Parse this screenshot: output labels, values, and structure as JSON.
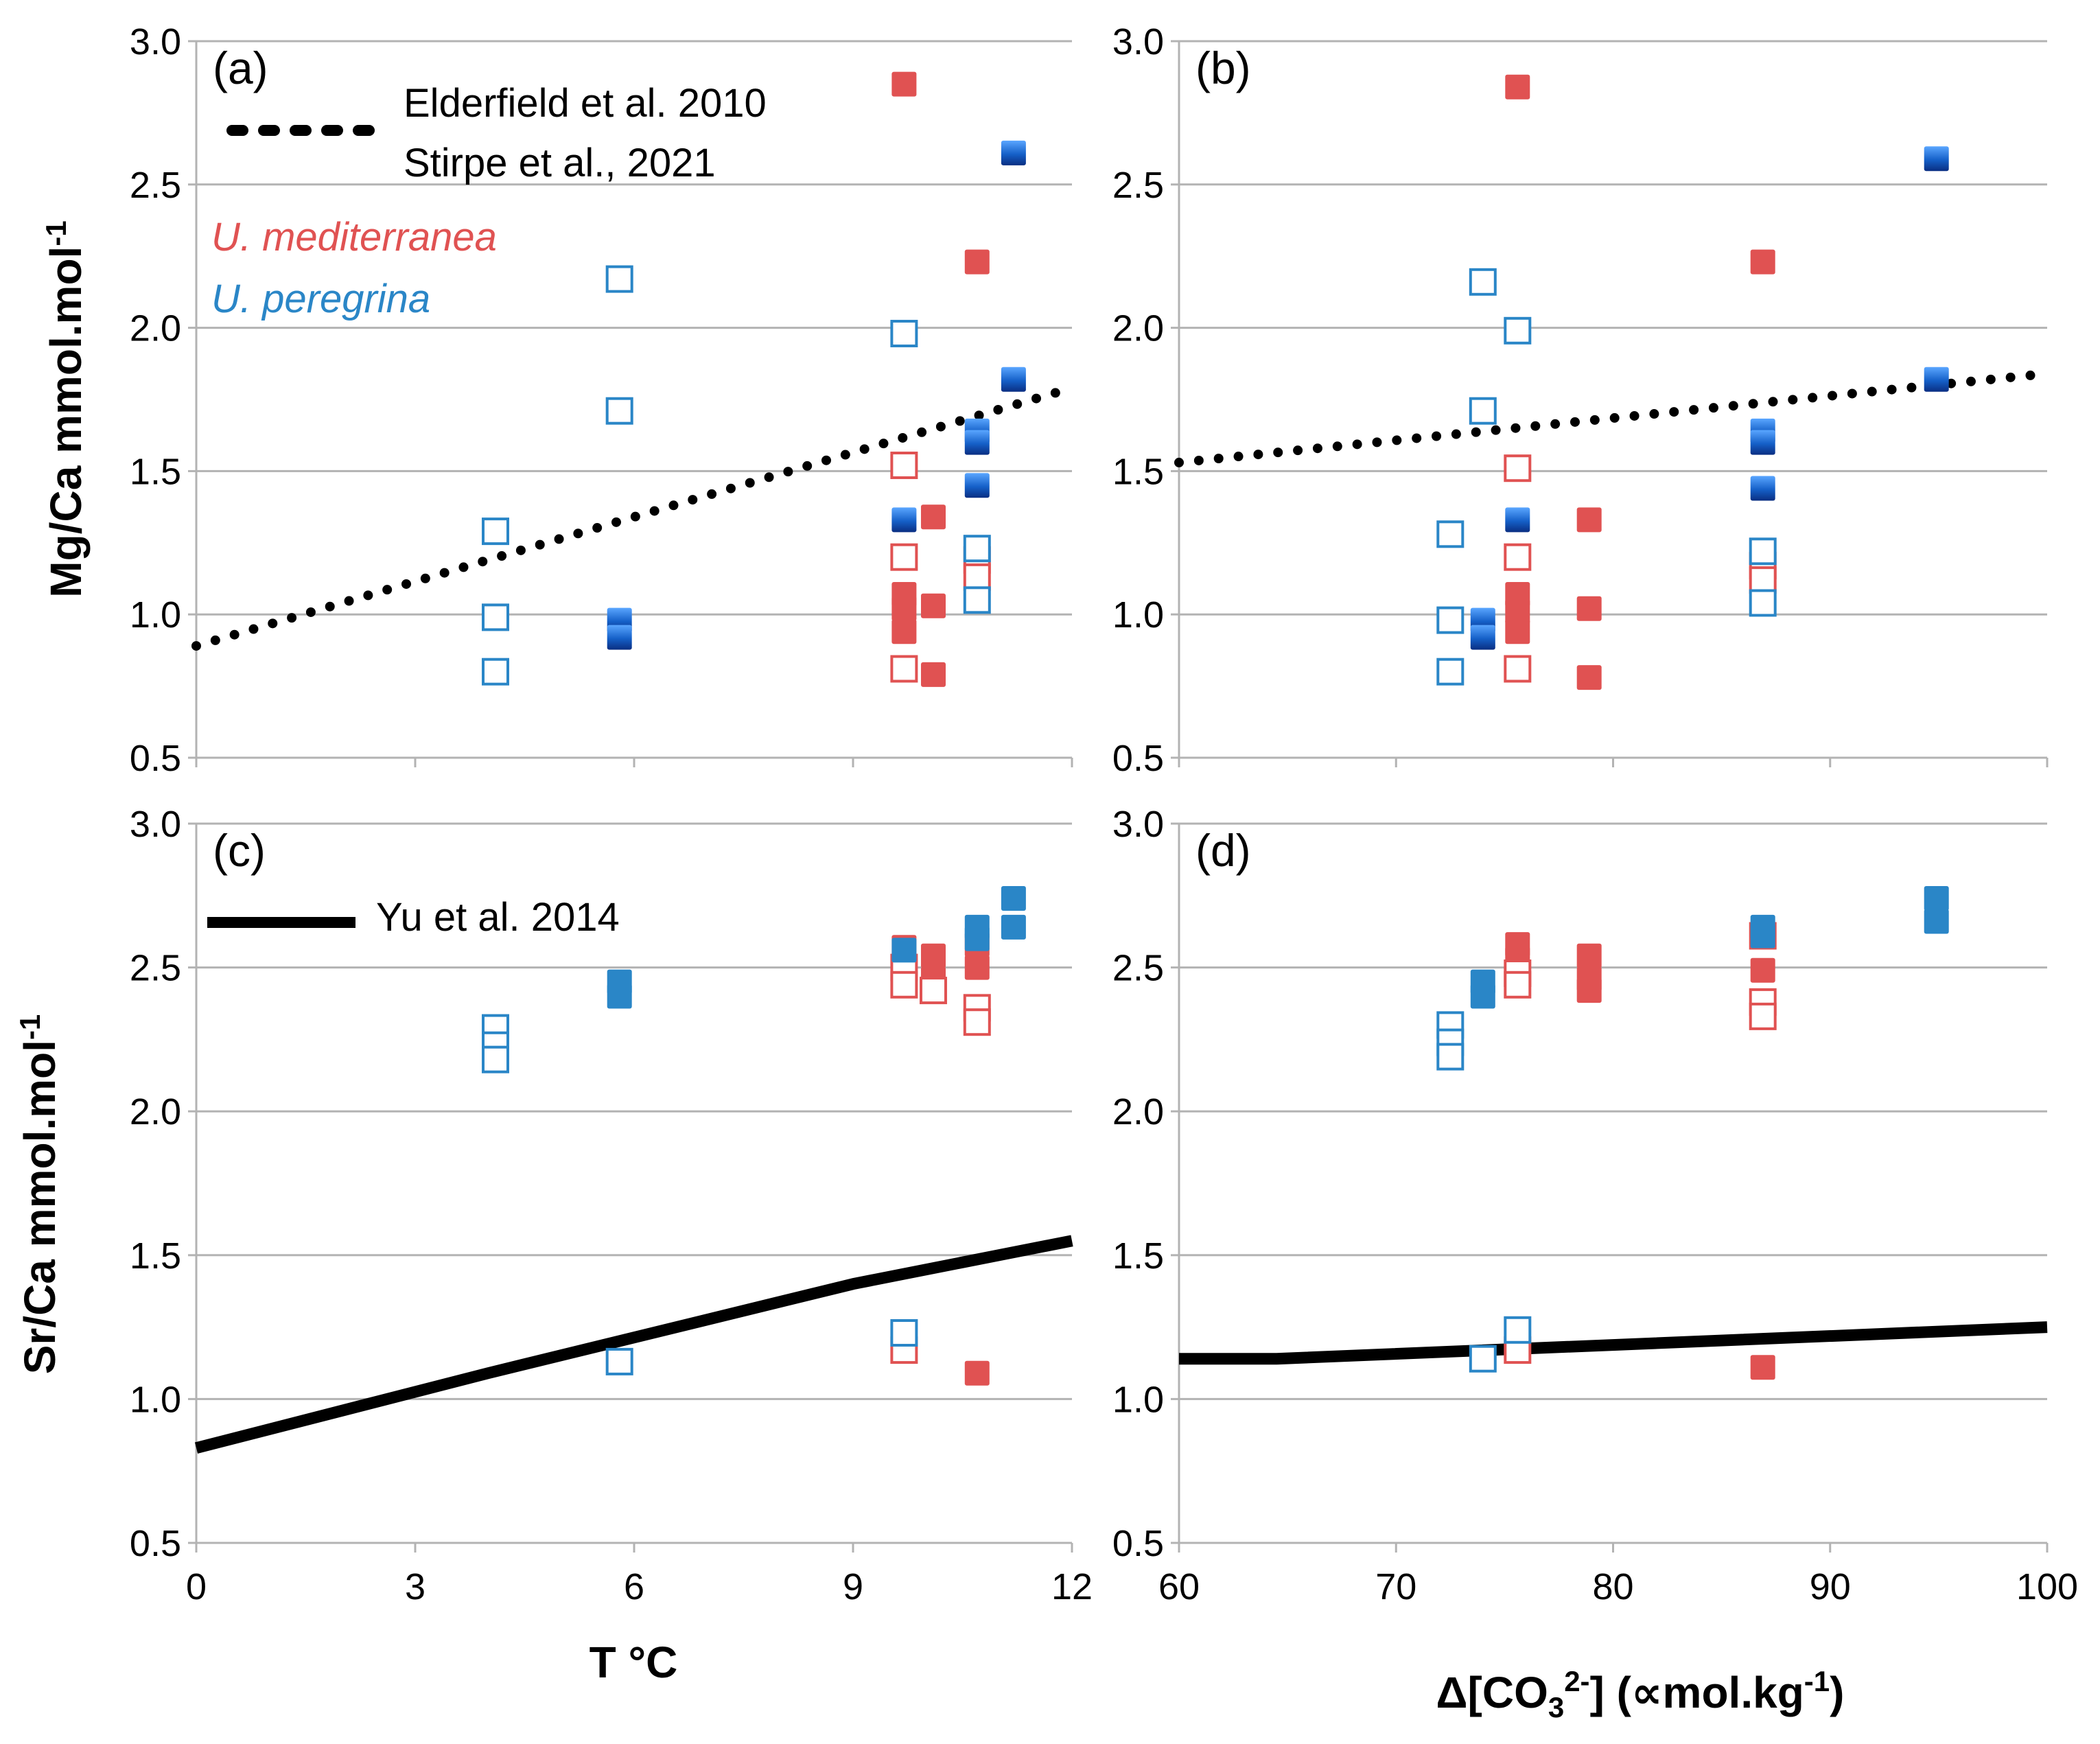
{
  "colors": {
    "red": "#e05252",
    "blue_filled": "#1560c8",
    "blue_open": "#2a86c7",
    "blue_plain": "#2a86c7",
    "grid": "#b3b3b3",
    "line": "#000000"
  },
  "labels": {
    "mg_axis": "Mg/Ca mmol.mol",
    "sr_axis": "Sr/Ca mmol.mol",
    "exp_minus1": "-1",
    "x_temp": "T °C",
    "x_co3_delta": "Δ[CO",
    "x_co3_sub": "3",
    "x_co3_sup": "2-",
    "x_co3_mid": "] (∝mol.kg",
    "x_co3_sup2": "-1",
    "x_co3_end": ")"
  },
  "legend": {
    "elderfield": "Elderfield et al. 2010",
    "stirpe": "Stirpe et al., 2021",
    "mediterranea": "U. mediterranea",
    "peregrina": "U. peregrina",
    "yu": "Yu et al. 2014"
  },
  "chart_data": [
    {
      "id": "a",
      "panel_label": "(a)",
      "type": "scatter",
      "xlabel": "T °C",
      "ylabel": "Mg/Ca mmol.mol-1",
      "xlim": [
        0,
        12
      ],
      "ylim": [
        0.5,
        3.0
      ],
      "xticks": [
        0,
        3,
        6,
        9,
        12
      ],
      "yticks": [
        0.5,
        1.0,
        1.5,
        2.0,
        2.5,
        3.0
      ],
      "show_x_tick_labels": false,
      "line": {
        "name": "Elderfield et al. 2010",
        "style": "dotted",
        "points": [
          [
            0,
            0.89
          ],
          [
            12,
            1.79
          ]
        ]
      },
      "series": [
        {
          "name": "U. mediterranea (Stirpe et al., 2021)",
          "style": "red_filled",
          "points": [
            [
              9.7,
              2.85
            ],
            [
              10.7,
              2.23
            ],
            [
              10.1,
              1.34
            ],
            [
              9.7,
              1.07
            ],
            [
              9.7,
              1.02
            ],
            [
              9.7,
              0.94
            ],
            [
              10.1,
              1.03
            ],
            [
              10.1,
              0.79
            ]
          ]
        },
        {
          "name": "U. mediterranea (open)",
          "style": "red_open",
          "points": [
            [
              9.7,
              1.52
            ],
            [
              9.7,
              1.2
            ],
            [
              9.7,
              0.81
            ],
            [
              10.7,
              1.19
            ],
            [
              10.7,
              1.13
            ]
          ]
        },
        {
          "name": "U. peregrina (Stirpe et al., 2021)",
          "style": "blue_filled",
          "points": [
            [
              11.2,
              2.61
            ],
            [
              11.2,
              1.82
            ],
            [
              10.7,
              1.64
            ],
            [
              10.7,
              1.6
            ],
            [
              10.7,
              1.45
            ],
            [
              9.7,
              1.33
            ],
            [
              5.8,
              0.98
            ],
            [
              5.8,
              0.92
            ]
          ]
        },
        {
          "name": "U. peregrina (open)",
          "style": "blue_open",
          "points": [
            [
              5.8,
              2.17
            ],
            [
              5.8,
              1.71
            ],
            [
              9.7,
              1.98
            ],
            [
              4.1,
              1.29
            ],
            [
              4.1,
              0.99
            ],
            [
              4.1,
              0.8
            ],
            [
              10.7,
              1.23
            ],
            [
              10.7,
              1.05
            ]
          ]
        }
      ]
    },
    {
      "id": "b",
      "panel_label": "(b)",
      "type": "scatter",
      "xlabel": "Δ[CO3 2-] (∝mol.kg-1)",
      "ylabel": "",
      "xlim": [
        60,
        100
      ],
      "ylim": [
        0.5,
        3.0
      ],
      "xticks": [
        60,
        70,
        80,
        90,
        100
      ],
      "yticks": [
        0.5,
        1.0,
        1.5,
        2.0,
        2.5,
        3.0
      ],
      "show_x_tick_labels": false,
      "line": {
        "name": "Elderfield et al. 2010",
        "style": "dotted",
        "points": [
          [
            60,
            1.53
          ],
          [
            100,
            1.84
          ]
        ]
      },
      "series": [
        {
          "name": "U. mediterranea",
          "style": "red_filled",
          "points": [
            [
              75.6,
              2.84
            ],
            [
              86.9,
              2.23
            ],
            [
              78.9,
              1.33
            ],
            [
              75.6,
              1.07
            ],
            [
              75.6,
              1.01
            ],
            [
              75.6,
              0.94
            ],
            [
              78.9,
              1.02
            ],
            [
              78.9,
              0.78
            ]
          ]
        },
        {
          "name": "U. mediterranea (open)",
          "style": "red_open",
          "points": [
            [
              75.6,
              1.51
            ],
            [
              75.6,
              1.2
            ],
            [
              75.6,
              0.81
            ],
            [
              86.9,
              1.17
            ],
            [
              86.9,
              1.12
            ]
          ]
        },
        {
          "name": "U. peregrina",
          "style": "blue_filled",
          "points": [
            [
              94.9,
              2.59
            ],
            [
              94.9,
              1.82
            ],
            [
              86.9,
              1.64
            ],
            [
              86.9,
              1.6
            ],
            [
              86.9,
              1.44
            ],
            [
              75.6,
              1.33
            ],
            [
              74.0,
              0.98
            ],
            [
              74.0,
              0.92
            ]
          ]
        },
        {
          "name": "U. peregrina (open)",
          "style": "blue_open",
          "points": [
            [
              74.0,
              2.16
            ],
            [
              74.0,
              1.71
            ],
            [
              75.6,
              1.99
            ],
            [
              72.5,
              1.28
            ],
            [
              72.5,
              0.98
            ],
            [
              72.5,
              0.8
            ],
            [
              86.9,
              1.22
            ],
            [
              86.9,
              1.04
            ]
          ]
        }
      ]
    },
    {
      "id": "c",
      "panel_label": "(c)",
      "type": "scatter",
      "xlabel": "T °C",
      "ylabel": "Sr/Ca mmol.mol-1",
      "xlim": [
        0,
        12
      ],
      "ylim": [
        0.5,
        3.0
      ],
      "xticks": [
        0,
        3,
        6,
        9,
        12
      ],
      "yticks": [
        0.5,
        1.0,
        1.5,
        2.0,
        2.5,
        3.0
      ],
      "show_x_tick_labels": true,
      "line": {
        "name": "Yu et al. 2014",
        "style": "solid",
        "points": [
          [
            0,
            0.83
          ],
          [
            4,
            1.09
          ],
          [
            9,
            1.4
          ],
          [
            12,
            1.55
          ]
        ]
      },
      "series": [
        {
          "name": "U. mediterranea",
          "style": "red_filled",
          "points": [
            [
              9.7,
              2.57
            ],
            [
              10.1,
              2.54
            ],
            [
              10.1,
              2.46
            ],
            [
              10.7,
              2.58
            ],
            [
              10.7,
              2.5
            ],
            [
              9.7,
              1.2
            ],
            [
              10.7,
              1.09
            ]
          ]
        },
        {
          "name": "U. mediterranea (open)",
          "style": "red_open",
          "points": [
            [
              9.7,
              2.5
            ],
            [
              9.7,
              2.44
            ],
            [
              10.1,
              2.42
            ],
            [
              10.7,
              2.36
            ],
            [
              10.7,
              2.31
            ],
            [
              9.7,
              1.17
            ]
          ]
        },
        {
          "name": "U. peregrina",
          "style": "blue_plain",
          "points": [
            [
              5.8,
              2.45
            ],
            [
              5.8,
              2.4
            ],
            [
              9.7,
              2.56
            ],
            [
              10.7,
              2.64
            ],
            [
              10.7,
              2.6
            ],
            [
              11.2,
              2.74
            ],
            [
              11.2,
              2.64
            ]
          ]
        },
        {
          "name": "U. peregrina (open)",
          "style": "blue_open",
          "points": [
            [
              4.1,
              2.29
            ],
            [
              4.1,
              2.23
            ],
            [
              4.1,
              2.18
            ],
            [
              5.8,
              1.13
            ],
            [
              9.7,
              1.23
            ]
          ]
        }
      ]
    },
    {
      "id": "d",
      "panel_label": "(d)",
      "type": "scatter",
      "xlabel": "Δ[CO3 2-] (∝mol.kg-1)",
      "ylabel": "",
      "xlim": [
        60,
        100
      ],
      "ylim": [
        0.5,
        3.0
      ],
      "xticks": [
        60,
        70,
        80,
        90,
        100
      ],
      "yticks": [
        0.5,
        1.0,
        1.5,
        2.0,
        2.5,
        3.0
      ],
      "show_x_tick_labels": true,
      "line": {
        "name": "Yu et al. 2014",
        "style": "solid",
        "points": [
          [
            60,
            1.14
          ],
          [
            64.5,
            1.14
          ],
          [
            100,
            1.25
          ]
        ]
      },
      "series": [
        {
          "name": "U. mediterranea",
          "style": "red_filled",
          "points": [
            [
              75.6,
              2.58
            ],
            [
              75.6,
              2.53
            ],
            [
              78.9,
              2.54
            ],
            [
              78.9,
              2.46
            ],
            [
              78.9,
              2.42
            ],
            [
              86.9,
              2.49
            ],
            [
              75.6,
              1.2
            ],
            [
              86.9,
              1.11
            ]
          ]
        },
        {
          "name": "U. mediterranea (open)",
          "style": "red_open",
          "points": [
            [
              75.6,
              2.48
            ],
            [
              75.6,
              2.44
            ],
            [
              86.9,
              2.61
            ],
            [
              86.9,
              2.38
            ],
            [
              86.9,
              2.33
            ],
            [
              75.6,
              1.17
            ]
          ]
        },
        {
          "name": "U. peregrina",
          "style": "blue_plain",
          "points": [
            [
              74.0,
              2.45
            ],
            [
              74.0,
              2.4
            ],
            [
              86.9,
              2.64
            ],
            [
              86.9,
              2.61
            ],
            [
              94.9,
              2.74
            ],
            [
              94.9,
              2.66
            ]
          ]
        },
        {
          "name": "U. peregrina (open)",
          "style": "blue_open",
          "points": [
            [
              72.5,
              2.3
            ],
            [
              72.5,
              2.24
            ],
            [
              72.5,
              2.19
            ],
            [
              74.0,
              1.14
            ],
            [
              75.6,
              1.24
            ]
          ]
        }
      ]
    }
  ]
}
